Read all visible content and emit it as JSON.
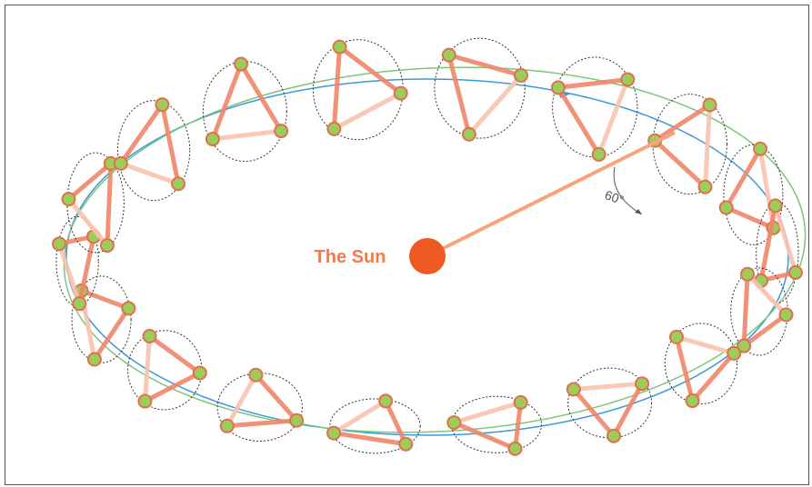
{
  "labels": {
    "sun": "The Sun",
    "angle": "60°"
  }
}
